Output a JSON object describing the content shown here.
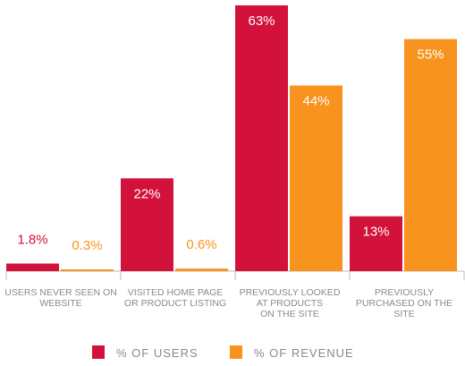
{
  "chart_data": {
    "type": "bar",
    "categories": [
      [
        "USERS NEVER SEEN ON",
        "WEBSITE"
      ],
      [
        "VISITED HOME PAGE",
        "OR PRODUCT LISTING"
      ],
      [
        "PREVIOUSLY LOOKED",
        "AT PRODUCTS",
        "ON THE SITE"
      ],
      [
        "PREVIOUSLY",
        "PURCHASED ON THE",
        "SITE"
      ]
    ],
    "series": [
      {
        "name": "% OF USERS",
        "color": "#d3123b",
        "values": [
          1.8,
          22,
          63,
          13
        ],
        "labels": [
          "1.8%",
          "22%",
          "63%",
          "13%"
        ]
      },
      {
        "name": "% OF REVENUE",
        "color": "#f7931e",
        "values": [
          0.3,
          0.6,
          44,
          55
        ],
        "labels": [
          "0.3%",
          "0.6%",
          "44%",
          "55%"
        ]
      }
    ],
    "ylim": [
      0,
      63
    ],
    "grid": false,
    "legend_position": "bottom"
  }
}
